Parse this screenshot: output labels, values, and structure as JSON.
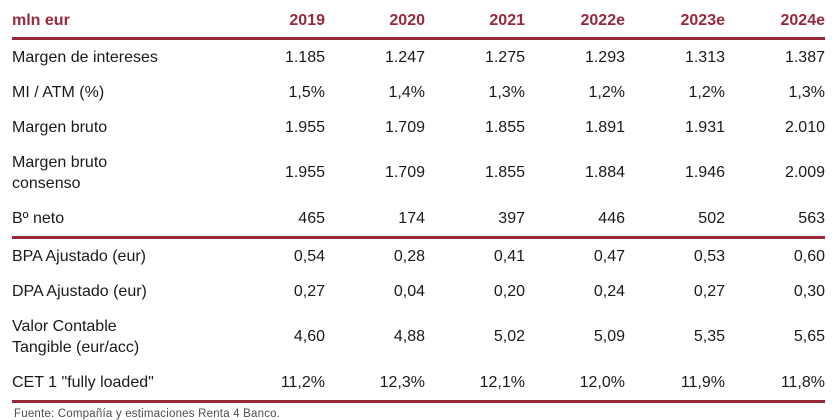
{
  "table": {
    "unit_label": "mln eur",
    "columns": [
      "2019",
      "2020",
      "2021",
      "2022e",
      "2023e",
      "2024e"
    ],
    "rows": [
      {
        "label": "Margen de intereses",
        "values": [
          "1.185",
          "1.247",
          "1.275",
          "1.293",
          "1.313",
          "1.387"
        ],
        "separator_after": false
      },
      {
        "label": "MI / ATM (%)",
        "values": [
          "1,5%",
          "1,4%",
          "1,3%",
          "1,2%",
          "1,2%",
          "1,3%"
        ],
        "separator_after": false
      },
      {
        "label": "Margen bruto",
        "values": [
          "1.955",
          "1.709",
          "1.855",
          "1.891",
          "1.931",
          "2.010"
        ],
        "separator_after": false
      },
      {
        "label": "Margen bruto\nconsenso",
        "values": [
          "1.955",
          "1.709",
          "1.855",
          "1.884",
          "1.946",
          "2.009"
        ],
        "separator_after": false
      },
      {
        "label": "Bº neto",
        "values": [
          "465",
          "174",
          "397",
          "446",
          "502",
          "563"
        ],
        "separator_after": true
      },
      {
        "label": "BPA Ajustado (eur)",
        "values": [
          "0,54",
          "0,28",
          "0,41",
          "0,47",
          "0,53",
          "0,60"
        ],
        "separator_after": false
      },
      {
        "label": "DPA Ajustado (eur)",
        "values": [
          "0,27",
          "0,04",
          "0,20",
          "0,24",
          "0,27",
          "0,30"
        ],
        "separator_after": false
      },
      {
        "label": "Valor Contable\nTangible (eur/acc)",
        "values": [
          "4,60",
          "4,88",
          "5,02",
          "5,09",
          "5,35",
          "5,65"
        ],
        "separator_after": false
      },
      {
        "label": "CET 1 \"fully loaded\"",
        "values": [
          "11,2%",
          "12,3%",
          "12,1%",
          "12,0%",
          "11,9%",
          "11,8%"
        ],
        "separator_after": true
      }
    ],
    "footer": "Fuente: Compañía y estimaciones Renta 4 Banco."
  },
  "colors": {
    "accent": "#97293a",
    "body_text": "#1a1a1a",
    "footer_text": "#4d4d4d"
  }
}
